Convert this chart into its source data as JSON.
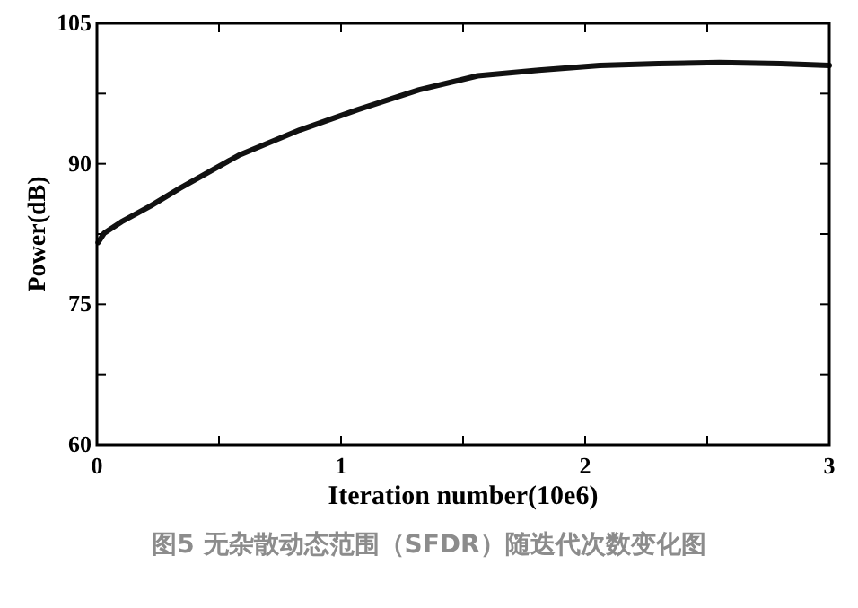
{
  "chart_data": {
    "type": "line",
    "xlabel": "Iteration number(10e6)",
    "ylabel": "Power(dB)",
    "annotations": [
      "图5 无杂散动态范围（SFDR）随迭代次数变化图"
    ],
    "x": [
      0.005,
      0.03,
      0.1,
      0.22,
      0.34,
      0.58,
      0.83,
      1.07,
      1.32,
      1.56,
      1.81,
      2.06,
      2.3,
      2.55,
      2.8,
      3.0
    ],
    "series": [
      {
        "color": "#111111",
        "values": [
          81.6,
          82.6,
          83.8,
          85.5,
          87.4,
          90.9,
          93.6,
          95.8,
          97.9,
          99.4,
          100.0,
          100.5,
          100.7,
          100.8,
          100.7,
          100.5
        ]
      }
    ],
    "xlim": [
      0,
      3
    ],
    "ylim": [
      60,
      105
    ],
    "xticks": [
      0,
      {
        "value": 0.5,
        "label": null
      },
      1,
      {
        "value": 1.5,
        "label": null
      },
      2,
      {
        "value": 2.5,
        "label": null
      },
      3
    ],
    "yticks": [
      60,
      {
        "value": 67.5,
        "label": null
      },
      75,
      {
        "value": 82.5,
        "label": null
      },
      90,
      {
        "value": 97.5,
        "label": null
      },
      105
    ],
    "grid": false,
    "line_style": "solid",
    "marker": "none"
  }
}
